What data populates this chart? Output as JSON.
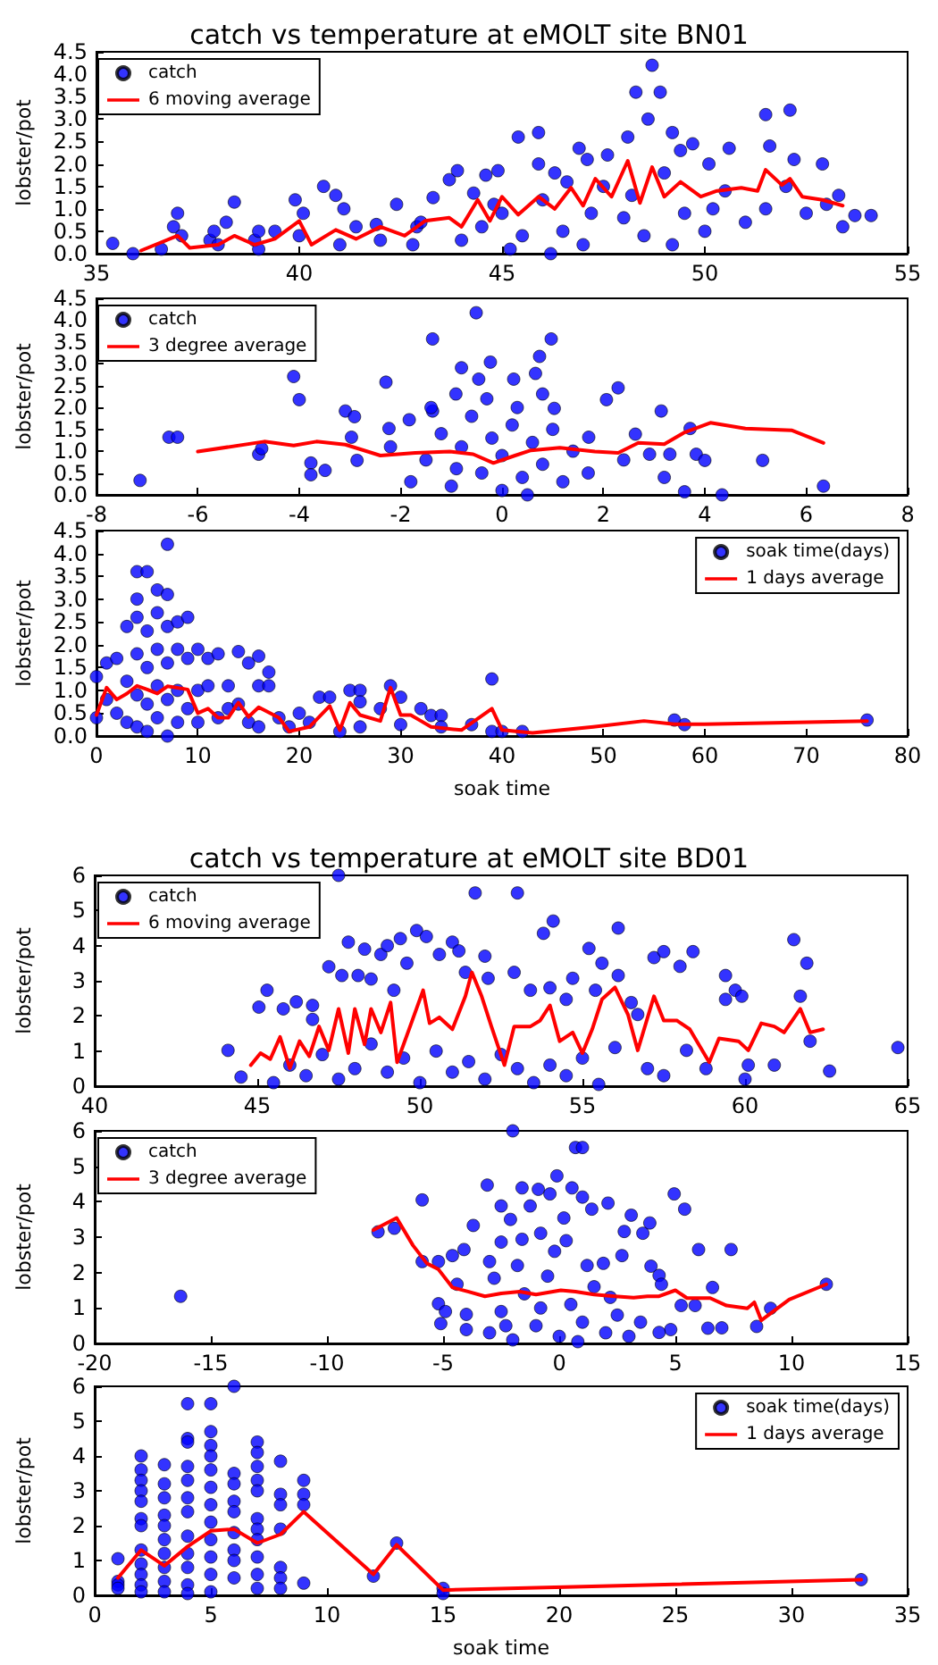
{
  "chart_data": [
    {
      "type": "scatter",
      "title": "catch vs temperature at eMOLT site BN01",
      "ylabel": "lobster/pot",
      "xlim": [
        35,
        55
      ],
      "xticks": [
        35,
        40,
        45,
        50,
        55
      ],
      "ylim": [
        0,
        4.5
      ],
      "yticks": [
        {
          "value": 0,
          "label": "0.0"
        },
        0.5,
        {
          "value": 1,
          "label": "1.0"
        },
        1.5,
        {
          "value": 2,
          "label": "2.0"
        },
        2.5,
        {
          "value": 3,
          "label": "3.0"
        },
        3.5,
        {
          "value": 4,
          "label": "4.0"
        },
        4.5
      ],
      "legend": "top left",
      "series": [
        {
          "name": "catch",
          "type": "scatter",
          "color": "#0000ff",
          "x": [
            35.4,
            35.9,
            36.6,
            37,
            36.9,
            37.1,
            37.8,
            37.9,
            38.2,
            38.4,
            38.9,
            39,
            39.4,
            39.9,
            40.1,
            40.6,
            40.9,
            41.1,
            41.4,
            41.9,
            42.4,
            42.9,
            43.3,
            43.7,
            43.9,
            44.3,
            44.6,
            44.9,
            45.4,
            45.9,
            45.9,
            46.3,
            46.6,
            46.9,
            47.1,
            47.6,
            48.1,
            48.3,
            48.6,
            48.7,
            48.9,
            49.2,
            49.4,
            49.7,
            50.1,
            50.6,
            51.5,
            51.6,
            52.1,
            52.2,
            52.9,
            53.3,
            53.4,
            53.7,
            54.1,
            44,
            44.5,
            45,
            45.5,
            46,
            46.5,
            47,
            47.5,
            48,
            48.5,
            49,
            49.5,
            50,
            50.5,
            51,
            51.5,
            52,
            52.5,
            53,
            45.2,
            46.2,
            47.2,
            48.2,
            49.2,
            50.2,
            42,
            43,
            41,
            40,
            39,
            38,
            42.8,
            44.8
          ],
          "values": [
            0.23,
            0,
            0.1,
            0.9,
            0.6,
            0.4,
            0.3,
            0.5,
            0.7,
            1.15,
            0.3,
            0.5,
            0.5,
            1.2,
            0.9,
            1.5,
            1.3,
            1,
            0.6,
            0.65,
            1.1,
            0.6,
            1.25,
            1.65,
            1.85,
            1.35,
            1.75,
            1.85,
            2.6,
            2.7,
            2,
            1.8,
            1.6,
            2.35,
            2.1,
            2.2,
            2.6,
            3.6,
            3,
            4.2,
            3.6,
            2.7,
            2.3,
            2.45,
            2,
            2.35,
            3.1,
            2.4,
            3.2,
            2.1,
            2,
            1.3,
            0.6,
            0.85,
            0.85,
            0.3,
            0.6,
            0.9,
            0.4,
            1.2,
            0.5,
            0.2,
            1.5,
            0.8,
            0.4,
            1.8,
            0.9,
            0.5,
            1.4,
            0.7,
            1,
            1.5,
            0.9,
            1.1,
            0.1,
            0,
            0.9,
            1.3,
            0.2,
            1,
            0.3,
            0.7,
            0.2,
            0.4,
            0.1,
            0.2,
            0.2,
            1.1
          ]
        },
        {
          "name": "6 moving average",
          "type": "line",
          "color": "#ff0000",
          "x": [
            36.1,
            37,
            37.3,
            38,
            38.4,
            38.9,
            39.4,
            40,
            40.3,
            40.9,
            41.4,
            42,
            42.6,
            43.1,
            43.7,
            44,
            44.4,
            44.7,
            45,
            45.4,
            45.9,
            46.3,
            46.7,
            47,
            47.3,
            47.7,
            48.1,
            48.4,
            48.7,
            49,
            49.4,
            49.9,
            50.3,
            50.9,
            51.3,
            51.5,
            51.9,
            52.1,
            52.4,
            52.9,
            53.4
          ],
          "values": [
            0.07,
            0.4,
            0.13,
            0.2,
            0.4,
            0.2,
            0.33,
            0.73,
            0.2,
            0.53,
            0.33,
            0.6,
            0.4,
            0.73,
            0.8,
            0.6,
            1.2,
            0.73,
            1.27,
            0.87,
            1.27,
            1,
            1.47,
            1.07,
            1.67,
            1.27,
            2.07,
            1.13,
            1.93,
            1.27,
            1.6,
            1.27,
            1.4,
            1.47,
            1.4,
            1.87,
            1.53,
            1.67,
            1.27,
            1.2,
            1.07
          ]
        }
      ]
    },
    {
      "type": "scatter",
      "ylabel": "lobster/pot",
      "xlim": [
        -8,
        8
      ],
      "xticks": [
        -8,
        -6,
        -4,
        -2,
        0,
        2,
        4,
        6,
        8
      ],
      "ylim": [
        0,
        4.5
      ],
      "yticks": [
        {
          "value": 0,
          "label": "0.0"
        },
        0.5,
        {
          "value": 1,
          "label": "1.0"
        },
        1.5,
        {
          "value": 2,
          "label": "2.0"
        },
        2.5,
        {
          "value": 3,
          "label": "3.0"
        },
        3.5,
        {
          "value": 4,
          "label": "4.0"
        },
        4.5
      ],
      "legend": "top left",
      "series": [
        {
          "name": "catch",
          "type": "scatter",
          "color": "#0000ff",
          "x": [
            -7.14,
            -6.57,
            -6.4,
            -4.8,
            -4.74,
            -4.11,
            -4,
            -3.77,
            -3.77,
            -3.49,
            -3.09,
            -2.91,
            -2.97,
            -2.86,
            -2.29,
            -2.23,
            -1.83,
            -1.37,
            -1.37,
            -0.8,
            -0.91,
            -0.51,
            -0.46,
            -0.23,
            0.23,
            0.66,
            0.74,
            0.97,
            0.8,
            1.03,
            1.71,
            2.06,
            2.29,
            2.63,
            2.91,
            3.14,
            3.31,
            3.2,
            3.71,
            3.83,
            4,
            4.34,
            3.6,
            5.14,
            6.34,
            -1.8,
            -1.5,
            -1.2,
            -1,
            -0.8,
            -0.6,
            -0.4,
            -0.2,
            0,
            0,
            0.2,
            0.4,
            0.6,
            0.8,
            1,
            1.2,
            1.4,
            -1.4,
            -0.3,
            0.3,
            -0.9,
            0.5,
            -2.2,
            1.7,
            2.4
          ],
          "values": [
            0.33,
            1.32,
            1.32,
            0.93,
            1.06,
            2.71,
            2.18,
            0.73,
            0.46,
            0.56,
            1.92,
            1.79,
            1.32,
            0.79,
            2.58,
            1.52,
            1.72,
            3.57,
            1.92,
            2.91,
            2.31,
            4.17,
            2.65,
            3.04,
            2.65,
            2.78,
            3.17,
            3.57,
            2.31,
            1.98,
            1.32,
            2.18,
            2.45,
            1.39,
            0.93,
            1.92,
            0.93,
            0.4,
            1.52,
            0.93,
            0.79,
            0,
            0.07,
            0.79,
            0.2,
            0.3,
            0.8,
            1.4,
            0.2,
            1.1,
            1.8,
            0.5,
            1.3,
            0.1,
            0.9,
            1.6,
            0.4,
            1.2,
            0.7,
            1.5,
            0.3,
            1,
            2,
            2.2,
            2,
            0.6,
            0,
            1.1,
            0.5,
            0.8
          ]
        },
        {
          "name": "3 degree average",
          "type": "line",
          "color": "#ff0000",
          "x": [
            -6,
            -4.69,
            -4.11,
            -3.66,
            -3.09,
            -2.4,
            -1.71,
            -1.03,
            -0.57,
            -0.17,
            0.23,
            0.57,
            1.14,
            1.83,
            2.29,
            2.69,
            3.2,
            3.6,
            4.11,
            4.8,
            5.71,
            6.34
          ],
          "values": [
            0.99,
            1.22,
            1.13,
            1.22,
            1.15,
            0.9,
            0.96,
            0.99,
            0.93,
            0.73,
            0.89,
            1.02,
            1.08,
            0.99,
            0.96,
            1.19,
            1.16,
            1.43,
            1.65,
            1.52,
            1.48,
            1.19
          ]
        }
      ]
    },
    {
      "type": "scatter",
      "xlabel": "soak time",
      "ylabel": "lobster/pot",
      "xlim": [
        0,
        80
      ],
      "xticks": [
        0,
        10,
        20,
        30,
        40,
        50,
        60,
        70,
        80
      ],
      "ylim": [
        0,
        4.5
      ],
      "yticks": [
        {
          "value": 0,
          "label": "0.0"
        },
        0.5,
        {
          "value": 1,
          "label": "1.0"
        },
        1.5,
        {
          "value": 2,
          "label": "2.0"
        },
        2.5,
        {
          "value": 3,
          "label": "3.0"
        },
        3.5,
        {
          "value": 4,
          "label": "4.0"
        },
        4.5
      ],
      "legend": "top right",
      "series": [
        {
          "name": "soak time(days)",
          "type": "scatter",
          "color": "#0000ff",
          "x": [
            0,
            0,
            1,
            1,
            2,
            2,
            3,
            3,
            3,
            4,
            4,
            4,
            4,
            4,
            4,
            5,
            5,
            5,
            5,
            5,
            6,
            6,
            6,
            6,
            6,
            7,
            7,
            7,
            7,
            7,
            7,
            8,
            8,
            8,
            8,
            9,
            9,
            9,
            10,
            10,
            10,
            11,
            11,
            12,
            12,
            13,
            13,
            14,
            14,
            15,
            15,
            16,
            16,
            16,
            17,
            17,
            18,
            19,
            20,
            21,
            22,
            23,
            24,
            25,
            26,
            26,
            26,
            28,
            29,
            30,
            30,
            32,
            33,
            34,
            34,
            37,
            39,
            39,
            40,
            42,
            57,
            58,
            76
          ],
          "values": [
            1.3,
            0.4,
            1.6,
            0.8,
            1.7,
            0.5,
            2.4,
            1.2,
            0.3,
            3.6,
            3,
            2.6,
            1.8,
            0.9,
            0.2,
            3.6,
            2.3,
            1.5,
            0.7,
            0.1,
            3.2,
            2.7,
            1.9,
            1.1,
            0.4,
            4.2,
            3.1,
            2.4,
            1.6,
            0.8,
            0,
            2.5,
            1.9,
            1,
            0.3,
            2.6,
            1.7,
            0.6,
            1.9,
            1,
            0.3,
            1.7,
            1.1,
            1.8,
            0.4,
            1.1,
            0.6,
            1.85,
            0.7,
            1.6,
            0.3,
            1.75,
            1.1,
            0.2,
            1.4,
            1.1,
            0.4,
            0.2,
            0.5,
            0.3,
            0.85,
            0.85,
            0.1,
            1,
            1,
            0.75,
            0.2,
            0.6,
            1.1,
            0.85,
            0.25,
            0.6,
            0.45,
            0.45,
            0.2,
            0.25,
            1.25,
            0.1,
            0.1,
            0.1,
            0.35,
            0.25,
            0.35
          ]
        },
        {
          "name": "1 days average",
          "type": "line",
          "color": "#ff0000",
          "x": [
            0,
            1,
            2,
            3,
            4,
            5,
            6,
            7,
            9,
            10,
            11,
            12,
            13,
            14,
            15,
            16,
            18,
            19,
            21,
            23,
            24,
            25,
            26,
            28,
            29,
            30,
            31,
            32,
            33,
            36,
            39,
            40,
            43,
            49,
            54,
            57,
            60,
            76
          ],
          "values": [
            0.46,
            1.06,
            0.8,
            0.93,
            1.1,
            1.02,
            0.93,
            1.09,
            1.02,
            0.5,
            0.6,
            0.4,
            0.4,
            0.73,
            0.42,
            0.63,
            0.4,
            0.1,
            0.2,
            0.66,
            0.13,
            0.73,
            0.46,
            0.33,
            1.06,
            0.46,
            0.46,
            0.33,
            0.2,
            0.13,
            0.6,
            0.13,
            0.07,
            0.2,
            0.33,
            0.26,
            0.26,
            0.33
          ]
        }
      ]
    },
    {
      "type": "scatter",
      "title": "catch vs temperature at eMOLT site BD01",
      "ylabel": "lobster/pot",
      "xlim": [
        40,
        65
      ],
      "xticks": [
        40,
        45,
        50,
        55,
        60,
        65
      ],
      "ylim": [
        0,
        6
      ],
      "yticks": [
        0,
        1,
        2,
        3,
        4,
        5,
        6
      ],
      "legend": "top left",
      "series": [
        {
          "name": "catch",
          "type": "scatter",
          "color": "#0000ff",
          "x": [
            44.1,
            44.5,
            45.05,
            45.3,
            45.8,
            46.2,
            46.7,
            46.7,
            47.2,
            47.5,
            47.6,
            47.8,
            48.1,
            48.3,
            48.5,
            48.8,
            49,
            49.2,
            49.4,
            49.6,
            49.9,
            50.2,
            50.6,
            51,
            51.2,
            51.4,
            51.7,
            52,
            52.1,
            53,
            52.9,
            53.4,
            53.8,
            54.1,
            54,
            54.5,
            54.7,
            55.2,
            55.4,
            55.6,
            56.1,
            56.1,
            56.5,
            56.7,
            57.2,
            57.5,
            58,
            58.4,
            58.2,
            58.8,
            59.4,
            59.4,
            59.7,
            59.9,
            60.1,
            60.9,
            61.5,
            61.7,
            61.9,
            62,
            62.6,
            64.7,
            45.5,
            46,
            46.5,
            47,
            47.5,
            48,
            48.5,
            49,
            49.5,
            50,
            50.5,
            51,
            51.5,
            52,
            52.5,
            53,
            53.5,
            54,
            54.5,
            55,
            55.5,
            56,
            57,
            57.5,
            60
          ],
          "values": [
            1.02,
            0.26,
            2.25,
            2.73,
            2.2,
            2.4,
            2.3,
            1.9,
            3.4,
            6,
            3.15,
            4.1,
            3.15,
            3.9,
            3.05,
            3.75,
            4,
            2.73,
            4.2,
            3.5,
            4.43,
            4.26,
            3.75,
            4.1,
            3.85,
            3.24,
            5.5,
            3.7,
            3.07,
            5.5,
            3.24,
            2.73,
            4.35,
            4.7,
            2.8,
            2.47,
            3.07,
            3.92,
            2.73,
            3.5,
            4.5,
            3.15,
            2.38,
            2.04,
            3.66,
            3.83,
            3.41,
            3.83,
            1.02,
            0.5,
            3.15,
            2.47,
            2.73,
            2.56,
            0.6,
            0.6,
            4.17,
            2.56,
            3.5,
            1.28,
            0.43,
            1.1,
            0.1,
            0.6,
            0.3,
            0.9,
            0.2,
            0.5,
            1.2,
            0.4,
            0.8,
            0.1,
            1,
            0.4,
            0.7,
            0.2,
            0.9,
            0.5,
            0.1,
            0.6,
            0.3,
            0.8,
            0.05,
            1.1,
            0.5,
            0.3,
            0.2
          ]
        },
        {
          "name": "6 moving average",
          "type": "line",
          "color": "#ff0000",
          "x": [
            44.8,
            45.1,
            45.4,
            45.7,
            46,
            46.3,
            46.6,
            46.9,
            47.2,
            47.5,
            47.8,
            48,
            48.3,
            48.5,
            48.8,
            49.1,
            49.3,
            49.7,
            50.1,
            50.3,
            50.6,
            51,
            51.4,
            51.6,
            51.9,
            52.2,
            52.6,
            52.9,
            53.4,
            53.7,
            54,
            54.3,
            54.7,
            55,
            55.3,
            55.6,
            56,
            56.4,
            56.7,
            57.2,
            57.5,
            57.9,
            58.3,
            58.9,
            59.2,
            59.8,
            60.1,
            60.5,
            60.9,
            61.2,
            61.7,
            62,
            62.4
          ],
          "values": [
            0.6,
            0.94,
            0.77,
            1.4,
            0.51,
            1.28,
            0.85,
            1.7,
            1.02,
            2.2,
            0.94,
            2.2,
            1.19,
            2.2,
            1.53,
            2.38,
            0.68,
            1.7,
            2.73,
            1.79,
            1.96,
            1.62,
            2.56,
            3.24,
            2.56,
            1.7,
            0.6,
            1.7,
            1.7,
            1.87,
            2.3,
            1.28,
            1.53,
            0.94,
            1.62,
            2.47,
            2.81,
            2.04,
            1.02,
            2.56,
            1.87,
            1.87,
            1.62,
            0.68,
            1.36,
            1.28,
            1.02,
            1.79,
            1.7,
            1.53,
            2.2,
            1.53,
            1.62
          ]
        }
      ]
    },
    {
      "type": "scatter",
      "ylabel": "lobster/pot",
      "xlim": [
        -20,
        15
      ],
      "xticks": [
        -20,
        -15,
        -10,
        -5,
        0,
        5,
        10,
        15
      ],
      "ylim": [
        0,
        6
      ],
      "yticks": [
        0,
        1,
        2,
        3,
        4,
        5,
        6
      ],
      "legend": "top left",
      "series": [
        {
          "name": "catch",
          "type": "scatter",
          "color": "#0000ff",
          "x": [
            -16.3,
            -7.8,
            -7.1,
            -5.9,
            -5.9,
            -5.2,
            -4.6,
            -4.4,
            -5.2,
            -4.9,
            -5.1,
            -4.1,
            -4,
            -4,
            -3.7,
            -3.1,
            -3,
            -2.8,
            -2.5,
            -2.5,
            -2.1,
            -2,
            -1.6,
            -1.6,
            -1.25,
            -0.9,
            -0.8,
            -0.4,
            -0.1,
            0.2,
            0.55,
            0.7,
            1,
            1,
            1.4,
            2.1,
            1.9,
            2.7,
            2.8,
            3.1,
            3.6,
            3.9,
            3.95,
            4.3,
            4.4,
            4.95,
            5.4,
            5.25,
            5.85,
            6,
            6.6,
            6.4,
            7,
            7.4,
            8.5,
            9.1,
            11.5,
            4.8,
            4.3,
            -3,
            -2.5,
            -2,
            -1.5,
            -1,
            -0.5,
            0,
            0.5,
            1,
            1.5,
            2,
            2.5,
            3,
            -1.8,
            -0.2,
            0.3,
            1.2,
            -0.8,
            0.8,
            2.2,
            -2.3,
            3.5
          ],
          "values": [
            1.33,
            3.15,
            3.25,
            4.05,
            2.31,
            2.31,
            2.48,
            1.67,
            1.12,
            0.9,
            0.56,
            2.65,
            0.82,
            0.39,
            3.33,
            4.47,
            2.31,
            1.84,
            3.88,
            2.86,
            3.5,
            6,
            4.39,
            2.94,
            3.88,
            4.35,
            3.11,
            4.22,
            4.73,
            3.54,
            4.39,
            5.53,
            5.53,
            4.13,
            3.79,
            3.96,
            2.26,
            2.48,
            3.16,
            3.62,
            3.11,
            3.4,
            2.18,
            1.92,
            1.67,
            4.22,
            3.79,
            1.07,
            1.07,
            2.65,
            1.58,
            0.43,
            0.44,
            2.65,
            0.48,
            0.99,
            1.67,
            0.39,
            0.31,
            0.3,
            0.9,
            0.1,
            1.4,
            0.5,
            1.9,
            0.2,
            1.1,
            0.6,
            1.6,
            0.3,
            0.8,
            0.2,
            2.2,
            2.6,
            2.9,
            2.2,
            1,
            0.05,
            1.3,
            0.5,
            0.6
          ]
        },
        {
          "name": "3 degree average",
          "type": "line",
          "color": "#ff0000",
          "x": [
            -8,
            -7,
            -6.3,
            -5.7,
            -5.2,
            -4.6,
            -3.9,
            -3.2,
            -2.5,
            -1.7,
            -1,
            0.07,
            0.7,
            1.5,
            2.4,
            3.2,
            3.8,
            4.3,
            5,
            5.5,
            6.5,
            7.2,
            8.1,
            8.4,
            8.7,
            9.9,
            11.5
          ],
          "values": [
            3.2,
            3.54,
            2.77,
            2.26,
            2.09,
            1.58,
            1.46,
            1.33,
            1.41,
            1.46,
            1.38,
            1.5,
            1.46,
            1.38,
            1.33,
            1.29,
            1.33,
            1.33,
            1.5,
            1.28,
            1.28,
            1.07,
            0.99,
            1.16,
            0.65,
            1.24,
            1.67
          ]
        }
      ]
    },
    {
      "type": "scatter",
      "xlabel": "soak time",
      "ylabel": "lobster/pot",
      "xlim": [
        0,
        35
      ],
      "xticks": [
        0,
        5,
        10,
        15,
        20,
        25,
        30,
        35
      ],
      "ylim": [
        0,
        6
      ],
      "yticks": [
        0,
        1,
        2,
        3,
        4,
        5,
        6
      ],
      "legend": "top right",
      "series": [
        {
          "name": "soak time(days)",
          "type": "scatter",
          "color": "#0000ff",
          "x": [
            1,
            1,
            1,
            1,
            2,
            2,
            2,
            2,
            2,
            2,
            2,
            2,
            2,
            2,
            2,
            2,
            3,
            3,
            3,
            3,
            3,
            3,
            3,
            3,
            3,
            3,
            4,
            4,
            4,
            4,
            4,
            4,
            4,
            4,
            4,
            4,
            4,
            4,
            5,
            5,
            5,
            5,
            5,
            5,
            5,
            5,
            5,
            5,
            5,
            5,
            6,
            6,
            6,
            6,
            6,
            6,
            6,
            6,
            6,
            7,
            7,
            7,
            7,
            7,
            7,
            7,
            7,
            7,
            7,
            7,
            8,
            8,
            8,
            8,
            8,
            8,
            8,
            9,
            9,
            9,
            9,
            12,
            13,
            15,
            15,
            33
          ],
          "values": [
            1.05,
            0.4,
            0.3,
            0.2,
            4,
            3.6,
            3.3,
            3,
            2.7,
            2.2,
            2,
            1.3,
            0.9,
            0.6,
            0.3,
            0.1,
            3.75,
            3.2,
            2.8,
            2.3,
            2,
            1.6,
            1.2,
            0.8,
            0.4,
            0.1,
            5.5,
            4.5,
            4.4,
            3.7,
            3.3,
            2.8,
            2.4,
            1.7,
            1.2,
            0.8,
            0.3,
            0.05,
            5.5,
            4.7,
            4.3,
            4,
            3.6,
            3.1,
            2.6,
            2.1,
            1.6,
            1.1,
            0.6,
            0.1,
            6,
            3.5,
            3.2,
            2.7,
            2.4,
            1.8,
            1.3,
            1,
            0.5,
            4.4,
            4.1,
            3.7,
            3.3,
            3,
            2.2,
            1.9,
            1.6,
            1.1,
            0.6,
            0.2,
            3.85,
            2.9,
            2.6,
            1.9,
            0.8,
            0.5,
            0.2,
            3.3,
            2.9,
            2.6,
            0.35,
            0.55,
            1.5,
            0.2,
            0.05,
            0.45
          ]
        },
        {
          "name": "1 days average",
          "type": "line",
          "color": "#ff0000",
          "x": [
            1,
            2,
            3,
            4,
            5,
            6,
            7,
            8,
            9,
            12,
            13,
            15,
            33
          ],
          "values": [
            0.5,
            1.3,
            0.85,
            1.4,
            1.85,
            1.9,
            1.5,
            1.75,
            2.4,
            0.6,
            1.45,
            0.15,
            0.45
          ]
        }
      ]
    }
  ]
}
